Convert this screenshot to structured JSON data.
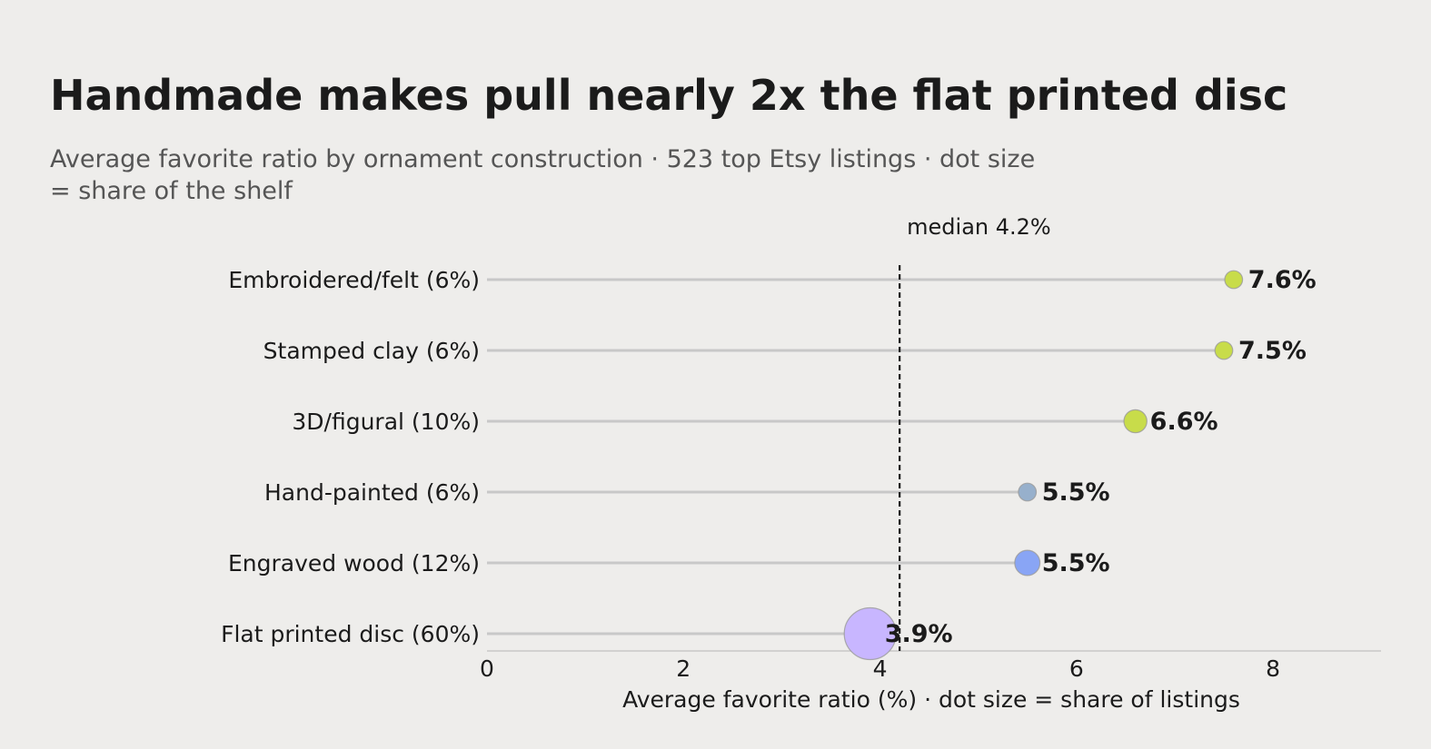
{
  "chart_data": {
    "type": "scatter",
    "title": "Handmade makes pull nearly 2x the flat printed disc",
    "subtitle_lines": [
      "Average favorite ratio by ornament construction · 523 top Etsy listings · dot size",
      "= share of the shelf"
    ],
    "xlabel": "Average favorite ratio (%)  ·  dot size = share of listings",
    "xlim": [
      0,
      9.1
    ],
    "xticks": [
      0,
      2,
      4,
      6,
      8
    ],
    "grid": false,
    "median": {
      "value": 4.2,
      "label": "median 4.2%"
    },
    "categories": [
      {
        "name": "Embroidered/felt",
        "share": 6,
        "label": "Embroidered/felt  (6%)",
        "value": 7.6,
        "value_label": "7.6%",
        "color": "#c8dc4a"
      },
      {
        "name": "Stamped clay",
        "share": 6,
        "label": "Stamped clay  (6%)",
        "value": 7.5,
        "value_label": "7.5%",
        "color": "#c8dc4a"
      },
      {
        "name": "3D/figural",
        "share": 10,
        "label": "3D/figural  (10%)",
        "value": 6.6,
        "value_label": "6.6%",
        "color": "#c8dc4a"
      },
      {
        "name": "Hand-painted",
        "share": 6,
        "label": "Hand-painted  (6%)",
        "value": 5.5,
        "value_label": "5.5%",
        "color": "#97b0cc"
      },
      {
        "name": "Engraved wood",
        "share": 12,
        "label": "Engraved wood  (12%)",
        "value": 5.5,
        "value_label": "5.5%",
        "color": "#89a5f5"
      },
      {
        "name": "Flat printed disc",
        "share": 60,
        "label": "Flat printed disc  (60%)",
        "value": 3.9,
        "value_label": "3.9%",
        "color": "#c8b6ff"
      }
    ],
    "colors": {
      "background": "#eeedeb",
      "stem": "#c8c8c8",
      "axis": "#c8c8c8",
      "median_line": "#1b1b1b",
      "dot_stroke": "#9a9a9a"
    }
  }
}
